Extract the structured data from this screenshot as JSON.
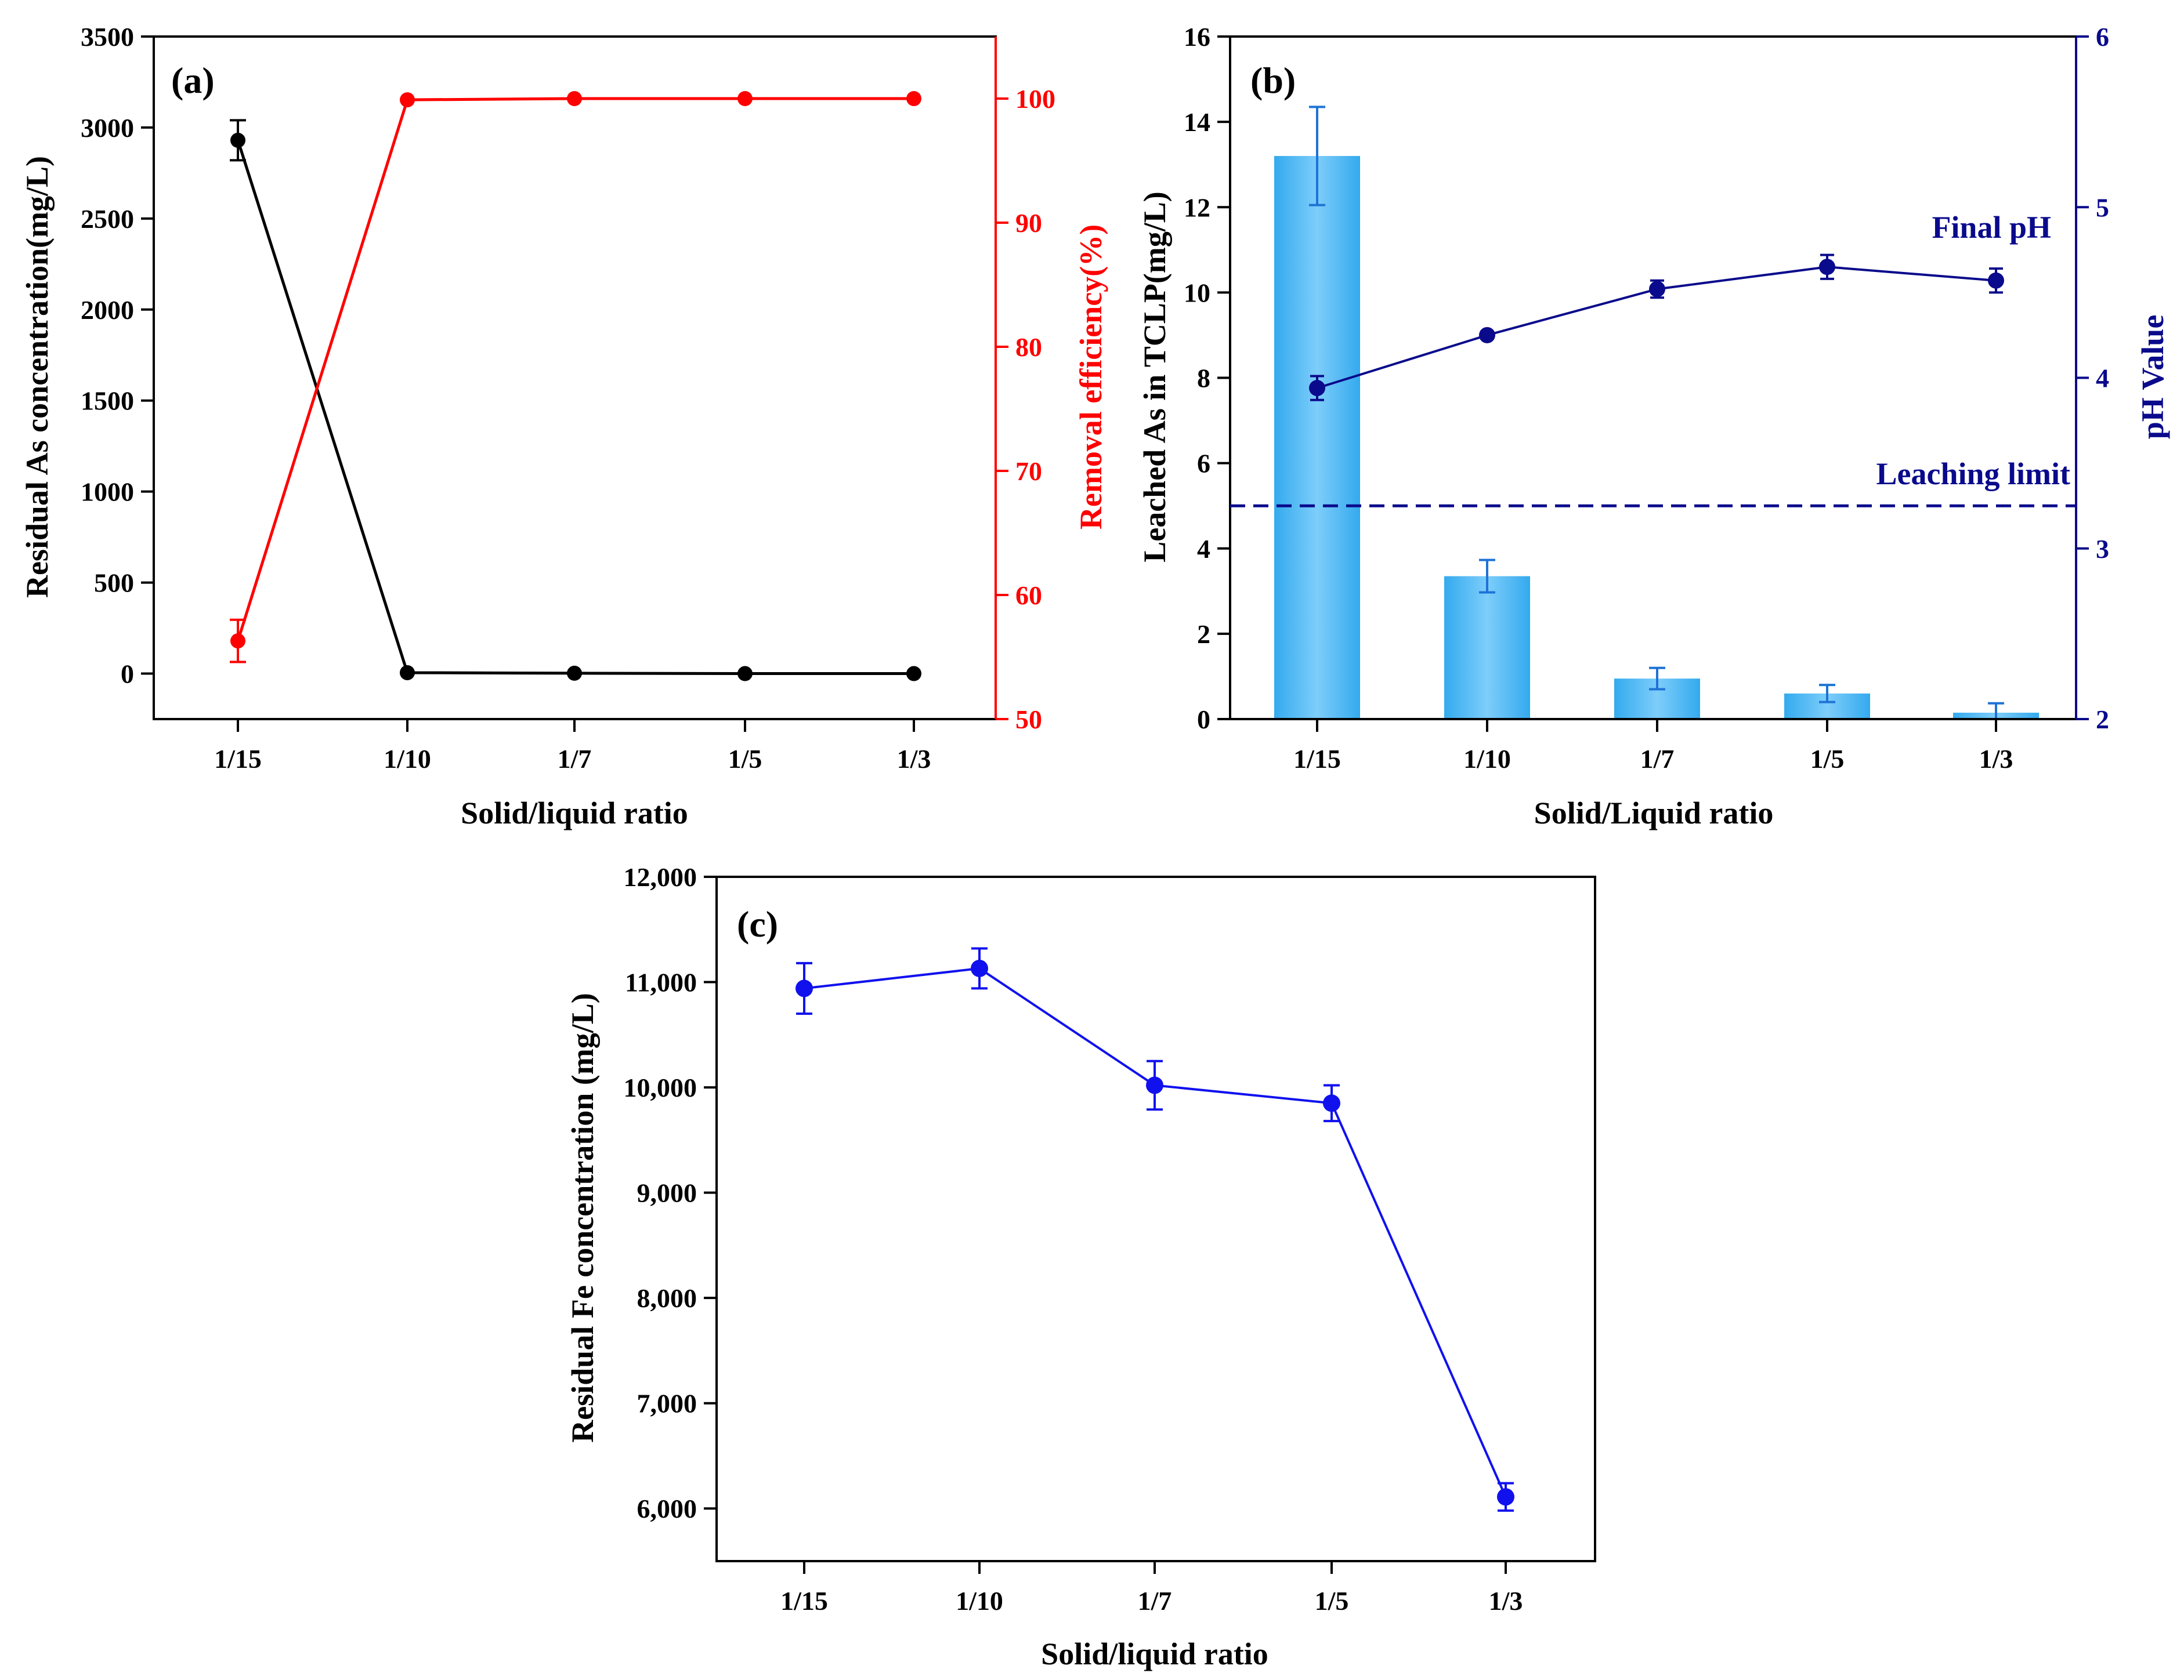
{
  "colors": {
    "black": "#000000",
    "red": "#ff0000",
    "navy": "#0a0a8c",
    "bar": "#33aaee",
    "bar_light": "#7ecdfa",
    "blue": "#1111ee"
  },
  "chart_data": [
    {
      "id": "a",
      "type": "line",
      "panel_label": "(a)",
      "categories": [
        "1/15",
        "1/10",
        "1/7",
        "1/5",
        "1/3"
      ],
      "xlabel": "Solid/liquid ratio",
      "ylabel": "Residual As concentration(mg/L)",
      "ylabel_right": "Removal efficiency(%)",
      "ylim": [
        -250,
        3500
      ],
      "yticks": [
        0,
        500,
        1000,
        1500,
        2000,
        2500,
        3000,
        3500
      ],
      "ylim_right": [
        50,
        105
      ],
      "yticks_right": [
        50,
        60,
        70,
        80,
        90,
        100
      ],
      "series": [
        {
          "name": "Residual As concentration",
          "axis": "left",
          "color": "#000000",
          "values": [
            2930,
            5,
            2,
            0,
            0
          ],
          "errors": [
            110,
            0,
            0,
            0,
            0
          ]
        },
        {
          "name": "Removal efficiency",
          "axis": "right",
          "color": "#ff0000",
          "values": [
            56.3,
            99.9,
            100,
            100,
            100
          ],
          "errors": [
            1.7,
            0,
            0,
            0,
            0
          ]
        }
      ]
    },
    {
      "id": "b",
      "type": "bar+line",
      "panel_label": "(b)",
      "categories": [
        "1/15",
        "1/10",
        "1/7",
        "1/5",
        "1/3"
      ],
      "xlabel": "Solid/Liquid ratio",
      "ylabel": "Leached As in TCLP(mg/L)",
      "ylabel_right": "pH Value",
      "ylim": [
        0,
        16
      ],
      "yticks": [
        0,
        2,
        4,
        6,
        8,
        10,
        12,
        14,
        16
      ],
      "ylim_right": [
        2,
        6
      ],
      "yticks_right": [
        2,
        3,
        4,
        5,
        6
      ],
      "bars": {
        "name": "Leached As",
        "values": [
          13.2,
          3.35,
          0.95,
          0.6,
          0.15
        ],
        "errors": [
          1.15,
          0.38,
          0.25,
          0.2,
          0.22
        ]
      },
      "line": {
        "name": "Final pH",
        "values": [
          3.94,
          4.25,
          4.52,
          4.65,
          4.57
        ],
        "errors": [
          0.07,
          0.02,
          0.05,
          0.07,
          0.07
        ]
      },
      "leaching_limit": 5,
      "annotations": {
        "final_ph": "Final pH",
        "limit": "Leaching limit"
      }
    },
    {
      "id": "c",
      "type": "line",
      "panel_label": "(c)",
      "categories": [
        "1/15",
        "1/10",
        "1/7",
        "1/5",
        "1/3"
      ],
      "xlabel": "Solid/liquid ratio",
      "ylabel": "Residual Fe concentration (mg/L)",
      "ylim": [
        5500,
        12000
      ],
      "yticks": [
        6000,
        7000,
        8000,
        9000,
        10000,
        11000,
        12000
      ],
      "ytick_labels": [
        "6,000",
        "7,000",
        "8,000",
        "9,000",
        "10,000",
        "11,000",
        "12,000"
      ],
      "series": [
        {
          "name": "Residual Fe concentration",
          "color": "#1111ee",
          "values": [
            10940,
            11130,
            10020,
            9850,
            6110
          ],
          "errors": [
            240,
            190,
            230,
            170,
            130
          ]
        }
      ]
    }
  ]
}
